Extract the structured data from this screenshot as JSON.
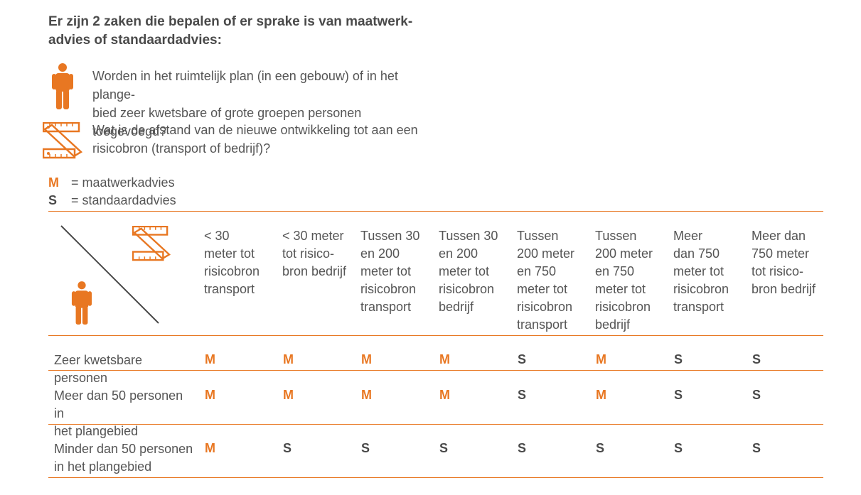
{
  "heading": "Er zijn 2 zaken die bepalen of er sprake is van maatwerk-advies of standaardadvies:",
  "heading_lines": [
    "Er zijn 2 zaken die bepalen of er sprake is van maatwerk-",
    "advies of standaardadvies:"
  ],
  "questions": [
    {
      "icon": "person-icon",
      "lines": [
        "Worden in het ruimtelijk plan (in een gebouw) of in het plange-",
        "bied zeer kwetsbare of grote groepen personen toegevoegd?"
      ]
    },
    {
      "icon": "folding-ruler-icon",
      "lines": [
        "Wat is de afstand van de nieuwe ontwikkeling tot aan een",
        "risicobron (transport of bedrijf)?"
      ]
    }
  ],
  "legend": [
    {
      "key": "M",
      "label": "= maatwerkadvies"
    },
    {
      "key": "S",
      "label": "= standaardadvies"
    }
  ],
  "table": {
    "columns": [
      [
        "< 30",
        "meter tot",
        "risicobron",
        "transport"
      ],
      [
        "< 30 meter",
        "tot risico-",
        "bron bedrijf"
      ],
      [
        "Tussen 30",
        "en 200",
        "meter tot",
        "risicobron",
        "transport"
      ],
      [
        "Tussen 30",
        "en 200",
        "meter tot",
        "risicobron",
        "bedrijf"
      ],
      [
        "Tussen",
        "200 meter",
        "en 750",
        "meter tot",
        "risicobron",
        "transport"
      ],
      [
        "Tussen",
        "200 meter",
        "en 750",
        "meter tot",
        "risicobron",
        "bedrijf"
      ],
      [
        "Meer",
        "dan 750",
        "meter tot",
        "risicobron",
        "transport"
      ],
      [
        "Meer dan",
        "750 meter",
        "tot risico-",
        "bron bedrijf"
      ]
    ],
    "rows": [
      {
        "label_lines": [
          "Zeer kwetsbare personen"
        ],
        "values": [
          "M",
          "M",
          "M",
          "M",
          "S",
          "M",
          "S",
          "S"
        ]
      },
      {
        "label_lines": [
          "Meer dan 50 personen in",
          "het plangebied"
        ],
        "values": [
          "M",
          "M",
          "M",
          "M",
          "S",
          "M",
          "S",
          "S"
        ]
      },
      {
        "label_lines": [
          "Minder dan 50 personen",
          "in het plangebied"
        ],
        "values": [
          "M",
          "S",
          "S",
          "S",
          "S",
          "S",
          "S",
          "S"
        ]
      }
    ]
  },
  "colors": {
    "accent": "#e87722",
    "text": "#4a4a4a"
  }
}
